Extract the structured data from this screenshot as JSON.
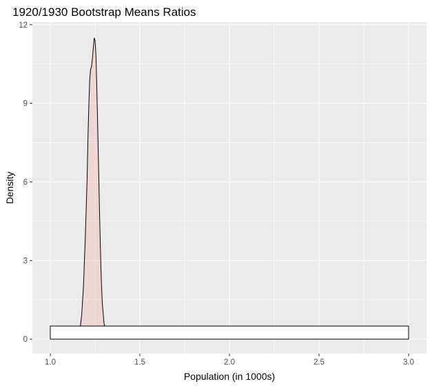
{
  "chart_data": {
    "type": "area",
    "title": "1920/1930 Bootstrap Means Ratios",
    "xlabel": "Population (in 1000s)",
    "ylabel": "Density",
    "xlim": [
      0.9,
      3.1
    ],
    "ylim": [
      -0.55,
      12.1
    ],
    "xticks": [
      1.0,
      1.5,
      2.0,
      2.5,
      3.0
    ],
    "xtick_labels": [
      "1.0",
      "1.5",
      "2.0",
      "2.5",
      "3.0"
    ],
    "yticks": [
      0,
      3,
      6,
      9,
      12
    ],
    "ytick_labels": [
      "0",
      "3",
      "6",
      "9",
      "12"
    ],
    "grid": true,
    "legend": "none",
    "series": [
      {
        "kind": "density",
        "x": [
          1.155,
          1.165,
          1.175,
          1.185,
          1.195,
          1.205,
          1.21,
          1.215,
          1.22,
          1.225,
          1.23,
          1.235,
          1.24,
          1.245,
          1.25,
          1.255,
          1.26,
          1.265,
          1.27,
          1.275,
          1.28,
          1.285,
          1.29,
          1.3,
          1.31,
          1.32,
          1.33,
          1.35,
          1.37,
          1.38
        ],
        "y": [
          0.1,
          0.35,
          0.9,
          2.0,
          3.8,
          6.0,
          7.6,
          8.9,
          9.9,
          10.3,
          10.4,
          10.7,
          11.1,
          11.5,
          11.4,
          10.8,
          9.5,
          8.0,
          6.4,
          4.8,
          3.4,
          2.2,
          1.4,
          0.6,
          0.3,
          0.15,
          0.08,
          0.04,
          0.03,
          0.0
        ],
        "fill": "#f8766d",
        "fill_opacity": 0.2,
        "stroke": "#000000"
      },
      {
        "kind": "boxplot",
        "xmin": 1.0,
        "xmax": 3.0,
        "ymin": 0.0,
        "ymax": 0.5,
        "fill": "#ffffff",
        "stroke": "#000000"
      }
    ]
  },
  "colors": {
    "panel_bg": "#ebebeb",
    "grid_major": "#ffffff",
    "tick_text": "#4d4d4d"
  }
}
